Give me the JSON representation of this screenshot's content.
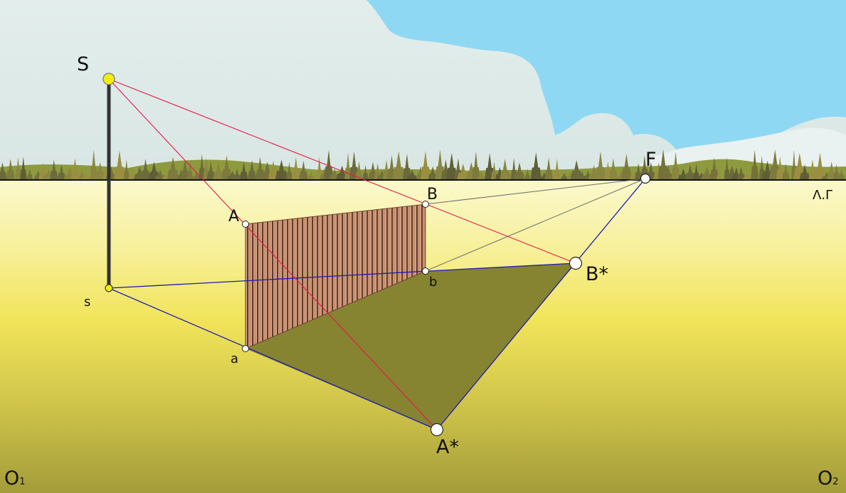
{
  "diagram": {
    "points": {
      "S": "S",
      "s": "s",
      "A": "A",
      "B": "B",
      "a": "a",
      "b": "b",
      "F": "F",
      "A_star": "A*",
      "B_star": "B*"
    },
    "horizon_label": "Λ.Γ",
    "corner_left": {
      "main": "O",
      "sub": "1"
    },
    "corner_right": {
      "main": "O",
      "sub": "2"
    }
  },
  "colors": {
    "sky": "#dfeceb",
    "sky_blue": "#8fd9f4",
    "ground_top": "#fbf8c4",
    "ground_mid": "#f2e65e",
    "ground_bottom": "#a9a23b",
    "shadow": "#858230",
    "wall": "#c88f6f",
    "wall_stripe": "#5c3b2a",
    "light_ray": "#e6194b",
    "ground_line": "#1f1fb0",
    "horizon": "#111111",
    "pole": "#333333",
    "light_source": "#f2ec15"
  }
}
